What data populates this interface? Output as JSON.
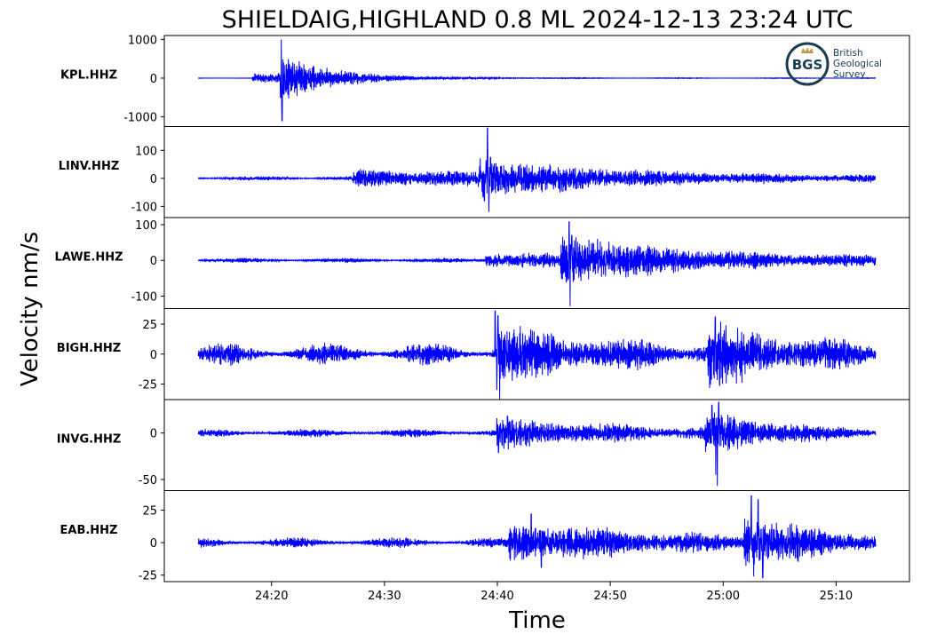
{
  "title": "SHIELDAIG,HIGHLAND 0.8 ML   2024-12-13 23:24 UTC",
  "logo": {
    "mark": "BGS",
    "lines": [
      "British",
      "Geological",
      "Survey"
    ],
    "color": "#1b3d4f",
    "accent": "#c49a4a"
  },
  "colors": {
    "trace": "#0000ff",
    "axes": "#000000"
  },
  "chart_data": {
    "type": "line",
    "ylabel": "Velocity nm/s",
    "xlabel": "Time",
    "x_tick_labels": [
      "24:20",
      "24:30",
      "24:40",
      "24:50",
      "25:00",
      "25:10"
    ],
    "x_tick_minutes": [
      20,
      30,
      40,
      50,
      60,
      70
    ],
    "x_unit": "minutes past 23:00 UTC",
    "x_range": [
      10.5,
      76.5
    ],
    "trace_range": [
      13.5,
      73.5
    ],
    "grid": false,
    "panels": [
      {
        "station": "KPL.HHZ",
        "ylim": [
          -1250,
          1100
        ],
        "yticks": [
          1000,
          0,
          -1000
        ],
        "yticklabels": [
          "1000",
          "0",
          "-1000"
        ],
        "noise": 8,
        "events": [
          {
            "t": 18.3,
            "amp": 110,
            "decay": 6.0,
            "freq": 2.6
          },
          {
            "t": 20.8,
            "amp": 450,
            "decay": 4.5,
            "freq": 2.8
          }
        ],
        "spikes": [
          {
            "t": 20.45,
            "v": 40
          },
          {
            "t": 20.55,
            "v": -80
          },
          {
            "t": 20.6,
            "v": 120
          },
          {
            "t": 20.8,
            "v": -500
          },
          {
            "t": 20.86,
            "v": 1000
          },
          {
            "t": 20.93,
            "v": -1100
          },
          {
            "t": 21.0,
            "v": 480
          },
          {
            "t": 21.1,
            "v": -420
          }
        ]
      },
      {
        "station": "LINV.HHZ",
        "ylim": [
          -140,
          185
        ],
        "yticks": [
          100,
          0,
          -100
        ],
        "yticklabels": [
          "100",
          "0",
          "-100"
        ],
        "noise": 7,
        "events": [
          {
            "t": 27.2,
            "amp": 22,
            "decay": 30,
            "freq": 1.6
          },
          {
            "t": 38.3,
            "amp": 42,
            "decay": 10,
            "freq": 2.2
          }
        ],
        "spikes": [
          {
            "t": 39.0,
            "v": 65
          },
          {
            "t": 39.12,
            "v": 180
          },
          {
            "t": 39.25,
            "v": -120
          },
          {
            "t": 39.4,
            "v": 75
          },
          {
            "t": 38.85,
            "v": -80
          }
        ]
      },
      {
        "station": "LAWE.HHZ",
        "ylim": [
          -135,
          120
        ],
        "yticks": [
          100,
          0,
          -100
        ],
        "yticklabels": [
          "100",
          "0",
          "-100"
        ],
        "noise": 6,
        "events": [
          {
            "t": 38.9,
            "amp": 14,
            "decay": 40,
            "freq": 1.4
          },
          {
            "t": 45.6,
            "amp": 48,
            "decay": 9,
            "freq": 2.1
          }
        ],
        "spikes": [
          {
            "t": 46.1,
            "v": -60
          },
          {
            "t": 46.35,
            "v": 108
          },
          {
            "t": 46.45,
            "v": -128
          },
          {
            "t": 46.6,
            "v": 70
          },
          {
            "t": 46.8,
            "v": -55
          }
        ]
      },
      {
        "station": "BIGH.HHZ",
        "ylim": [
          -38,
          38
        ],
        "yticks": [
          25,
          0,
          -25
        ],
        "yticklabels": [
          "25",
          "0",
          "-25"
        ],
        "noise": 8,
        "events": [
          {
            "t": 39.9,
            "amp": 14,
            "decay": 9,
            "freq": 2.4
          },
          {
            "t": 58.6,
            "amp": 16,
            "decay": 7,
            "freq": 2.4
          }
        ],
        "spikes": [
          {
            "t": 39.8,
            "v": 36
          },
          {
            "t": 39.95,
            "v": -30
          },
          {
            "t": 40.05,
            "v": 32
          },
          {
            "t": 40.2,
            "v": -40
          },
          {
            "t": 59.3,
            "v": 31
          },
          {
            "t": 59.7,
            "v": -26
          }
        ]
      },
      {
        "station": "INVG.HHZ",
        "ylim": [
          -62,
          36
        ],
        "yticks": [
          0,
          -50
        ],
        "yticklabels": [
          "0",
          "-50"
        ],
        "noise": 4,
        "events": [
          {
            "t": 39.9,
            "amp": 11,
            "decay": 12,
            "freq": 2.6
          },
          {
            "t": 58.3,
            "amp": 16,
            "decay": 6,
            "freq": 2.5
          }
        ],
        "spikes": [
          {
            "t": 39.95,
            "v": 16
          },
          {
            "t": 40.1,
            "v": -21
          },
          {
            "t": 40.9,
            "v": 18
          },
          {
            "t": 59.0,
            "v": 30
          },
          {
            "t": 59.35,
            "v": -45
          },
          {
            "t": 59.48,
            "v": -57
          },
          {
            "t": 59.6,
            "v": 33
          }
        ]
      },
      {
        "station": "EAB.HHZ",
        "ylim": [
          -30,
          40
        ],
        "yticks": [
          25,
          0,
          -25
        ],
        "yticklabels": [
          "25",
          "0",
          "-25"
        ],
        "noise": 3.5,
        "events": [
          {
            "t": 41.0,
            "amp": 11,
            "decay": 14,
            "freq": 2.7
          },
          {
            "t": 61.8,
            "amp": 13,
            "decay": 7,
            "freq": 2.6
          }
        ],
        "spikes": [
          {
            "t": 43.0,
            "v": 22
          },
          {
            "t": 43.9,
            "v": -19
          },
          {
            "t": 62.5,
            "v": 36
          },
          {
            "t": 62.7,
            "v": -26
          },
          {
            "t": 63.1,
            "v": 33
          },
          {
            "t": 63.5,
            "v": -27
          }
        ]
      }
    ]
  }
}
